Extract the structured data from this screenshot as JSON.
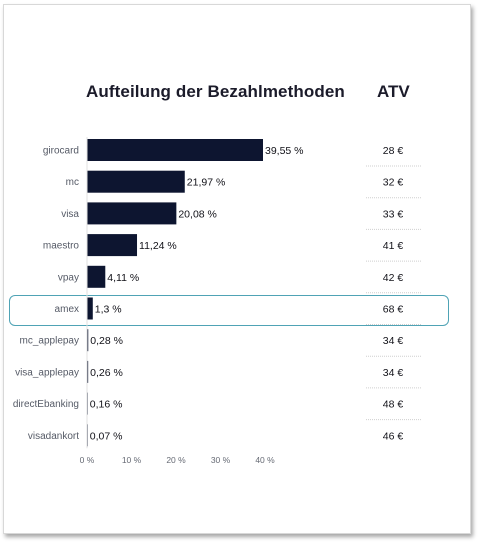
{
  "colors": {
    "bar": "#0d1530",
    "highlight_border": "#4fa3b5",
    "separator": "#cfcfcf"
  },
  "header": {
    "title": "Aufteilung der Bezahlmethoden",
    "atv_title": "ATV"
  },
  "chart_data": {
    "type": "bar",
    "orientation": "horizontal",
    "title": "Aufteilung der Bezahlmethoden",
    "categories": [
      "girocard",
      "mc",
      "visa",
      "maestro",
      "vpay",
      "amex",
      "mc_applepay",
      "visa_applepay",
      "directEbanking",
      "visadankort"
    ],
    "values": [
      39.55,
      21.97,
      20.08,
      11.24,
      4.11,
      1.3,
      0.28,
      0.26,
      0.16,
      0.07
    ],
    "value_labels": [
      "39,55 %",
      "21,97 %",
      "20,08 %",
      "11,24 %",
      "4,11 %",
      "1,3 %",
      "0,28 %",
      "0,26 %",
      "0,16 %",
      "0,07 %"
    ],
    "atv": [
      "28 €",
      "32 €",
      "33 €",
      "41 €",
      "42 €",
      "68 €",
      "34 €",
      "34 €",
      "48 €",
      "46 €"
    ],
    "highlighted_category": "amex",
    "xlim": [
      0,
      40
    ],
    "xticks": [
      0,
      10,
      20,
      30,
      40
    ],
    "xtick_labels": [
      "0 %",
      "10 %",
      "20 %",
      "30 %",
      "40 %"
    ],
    "grid": false
  }
}
